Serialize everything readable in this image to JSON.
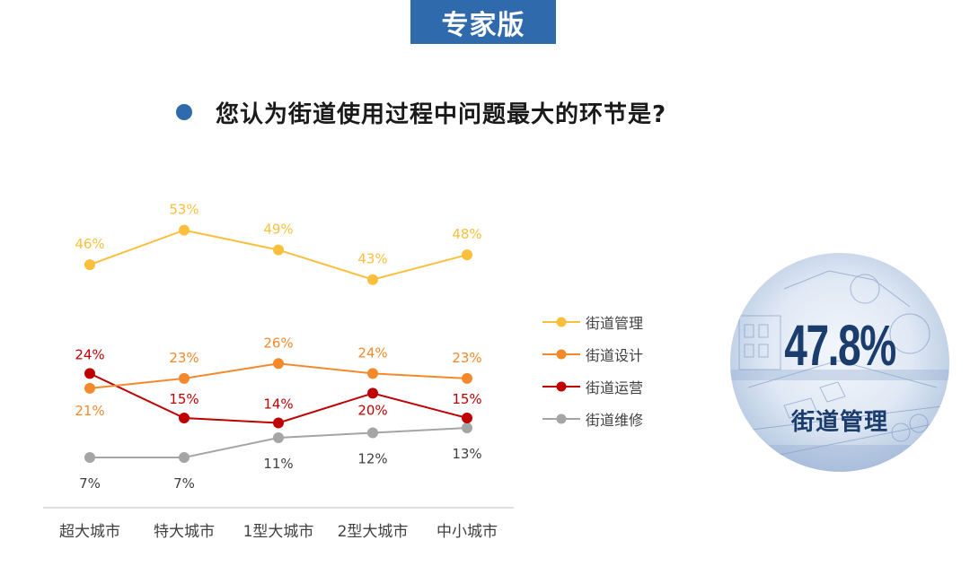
{
  "header": {
    "badge": "专家版"
  },
  "question": {
    "text": "您认为街道使用过程中问题最大的环节是?"
  },
  "highlight": {
    "value": "47.8%",
    "label": "街道管理"
  },
  "chart_data": {
    "type": "line",
    "title": "",
    "xlabel": "",
    "ylabel": "",
    "ylim": [
      0,
      60
    ],
    "grid": false,
    "legend_position": "right",
    "categories": [
      "超大城市",
      "特大城市",
      "1型大城市",
      "2型大城市",
      "中小城市"
    ],
    "series": [
      {
        "name": "街道管理",
        "color": "#fbbf3c",
        "values": [
          46,
          53,
          49,
          43,
          48
        ],
        "labels": [
          "46%",
          "53%",
          "49%",
          "43%",
          "48%"
        ]
      },
      {
        "name": "街道设计",
        "color": "#f4892c",
        "values": [
          21,
          23,
          26,
          24,
          23
        ],
        "labels": [
          "21%",
          "23%",
          "26%",
          "24%",
          "23%"
        ]
      },
      {
        "name": "街道运营",
        "color": "#c00000",
        "values": [
          24,
          15,
          14,
          20,
          15
        ],
        "labels": [
          "24%",
          "15%",
          "14%",
          "20%",
          "15%"
        ]
      },
      {
        "name": "街道维修",
        "color": "#a5a5a5",
        "values": [
          7,
          7,
          11,
          12,
          13
        ],
        "labels": [
          "7%",
          "7%",
          "11%",
          "12%",
          "13%"
        ]
      }
    ]
  }
}
